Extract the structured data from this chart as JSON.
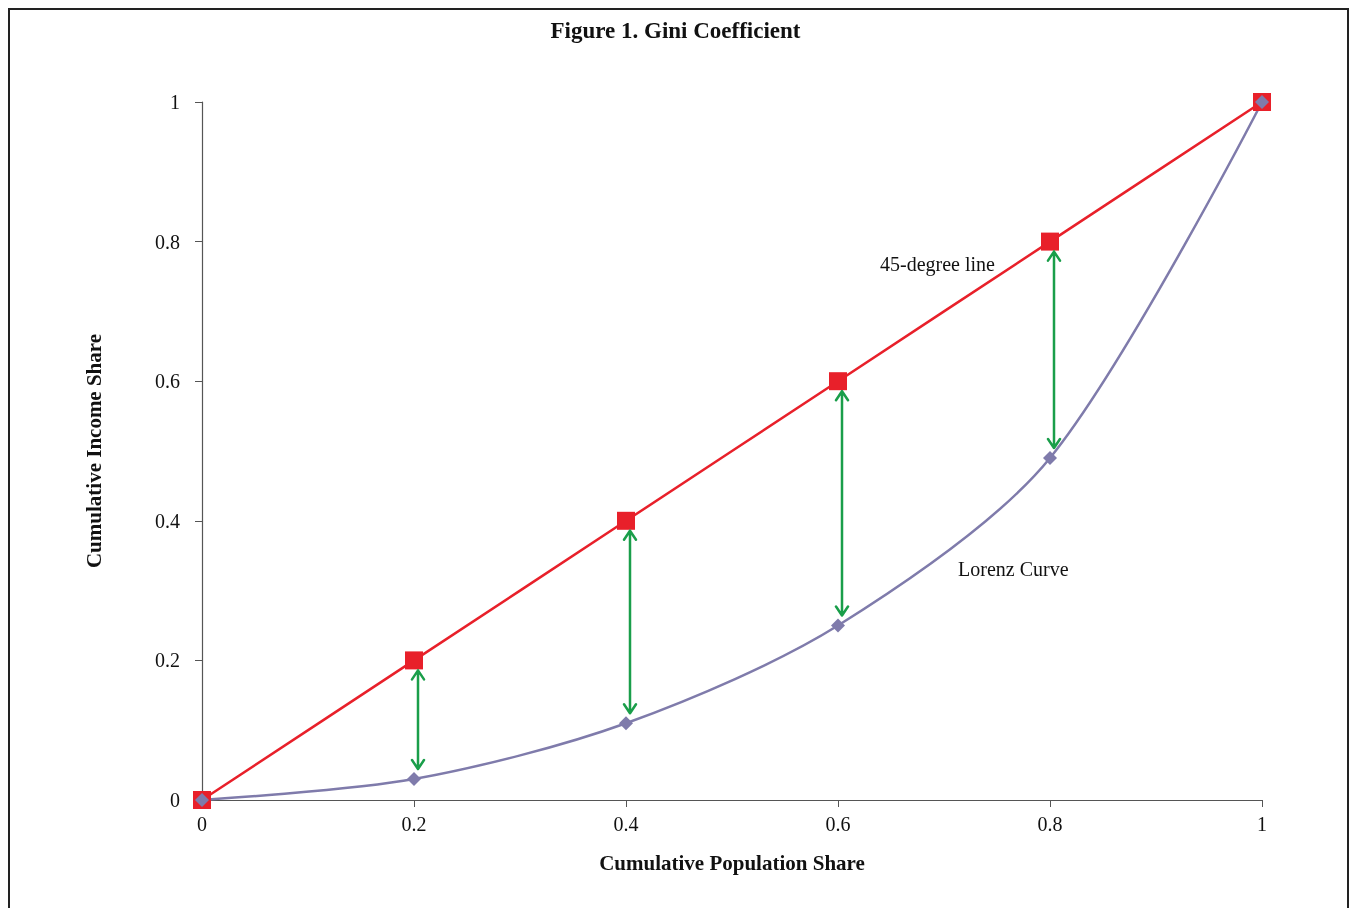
{
  "chart_data": {
    "type": "line",
    "title": "Figure 1. Gini Coefficient",
    "xlabel": "Cumulative Population Share",
    "ylabel": "Cumulative Income Share",
    "x": [
      0,
      0.2,
      0.4,
      0.6,
      0.8,
      1
    ],
    "series": [
      {
        "name": "45-degree line",
        "color": "#e8202a",
        "marker": "square",
        "values": [
          0,
          0.2,
          0.4,
          0.6,
          0.8,
          1
        ]
      },
      {
        "name": "Lorenz Curve",
        "color": "#7f7bab",
        "marker": "diamond",
        "values": [
          0,
          0.03,
          0.11,
          0.25,
          0.49,
          1
        ]
      }
    ],
    "xlim": [
      0,
      1
    ],
    "xticks": [
      0,
      0.2,
      0.4,
      0.6,
      0.8,
      1
    ],
    "ylim": [
      0,
      1
    ],
    "yticks": [
      0,
      0.2,
      0.4,
      0.6,
      0.8,
      1
    ],
    "grid": false
  }
}
